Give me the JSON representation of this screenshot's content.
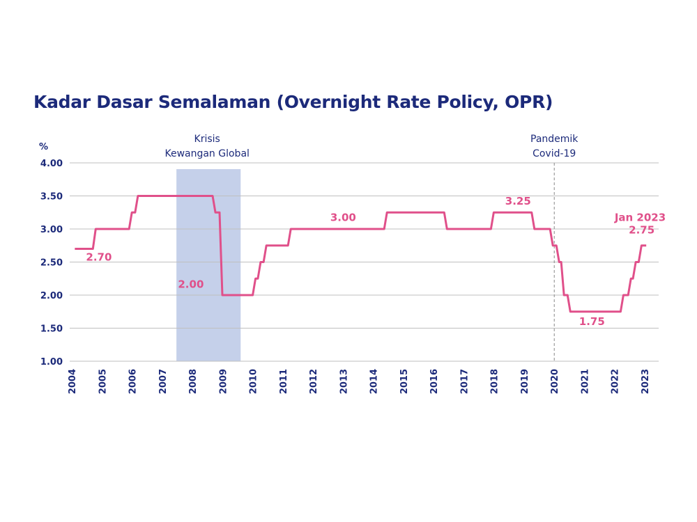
{
  "chart_data": {
    "type": "line",
    "title": "Kadar Dasar Semalaman (Overnight Rate Policy, OPR)",
    "ylabel": "%",
    "xlabel": "",
    "ylim": [
      1.0,
      4.0
    ],
    "xlim": [
      2004,
      2023
    ],
    "grid": "horizontal",
    "yticks": [
      "1.00",
      "1.50",
      "2.00",
      "2.50",
      "3.00",
      "3.50",
      "4.00"
    ],
    "xticks": [
      "2004",
      "2005",
      "2006",
      "2007",
      "2008",
      "2009",
      "2010",
      "2011",
      "2012",
      "2013",
      "2014",
      "2015",
      "2016",
      "2017",
      "2018",
      "2019",
      "2020",
      "2021",
      "2022",
      "2023"
    ],
    "line_color": "#e0508a",
    "series": [
      {
        "step": true,
        "x": [
          2004.1,
          2004.7,
          2005.9,
          2006.1,
          2008.67,
          2008.9,
          2010.0,
          2010.17,
          2010.36,
          2011.17,
          2014.36,
          2016.35,
          2017.9,
          2019.25,
          2019.86,
          2020.07,
          2020.23,
          2020.44,
          2022.2,
          2022.45,
          2022.61,
          2022.8,
          2023.05
        ],
        "y": [
          2.7,
          3.0,
          3.25,
          3.5,
          3.25,
          2.0,
          2.25,
          2.5,
          2.75,
          3.0,
          3.25,
          3.0,
          3.25,
          3.0,
          2.75,
          2.5,
          2.0,
          1.75,
          2.0,
          2.25,
          2.5,
          2.75,
          2.75
        ]
      }
    ],
    "data_labels": [
      {
        "text": "2.70",
        "x": 2004.9,
        "y": 2.52
      },
      {
        "text": "2.00",
        "x": 2007.95,
        "y": 2.11
      },
      {
        "text": "3.00",
        "x": 2013.0,
        "y": 3.12
      },
      {
        "text": "3.25",
        "x": 2018.8,
        "y": 3.37
      },
      {
        "text": "1.75",
        "x": 2021.25,
        "y": 1.55
      },
      {
        "text": "Jan 2023",
        "x": 2022.85,
        "y": 3.12
      },
      {
        "text": "2.75",
        "x": 2022.9,
        "y": 2.93
      }
    ],
    "events": [
      {
        "label_lines": [
          "Krisis",
          "Kewangan Global"
        ],
        "type": "shaded-band",
        "x_start": 2007.47,
        "x_end": 2009.6,
        "color": "#c5d0ea"
      },
      {
        "label_lines": [
          "Pandemik",
          "Covid-19"
        ],
        "type": "dashed-line",
        "x": 2020.0
      }
    ]
  }
}
